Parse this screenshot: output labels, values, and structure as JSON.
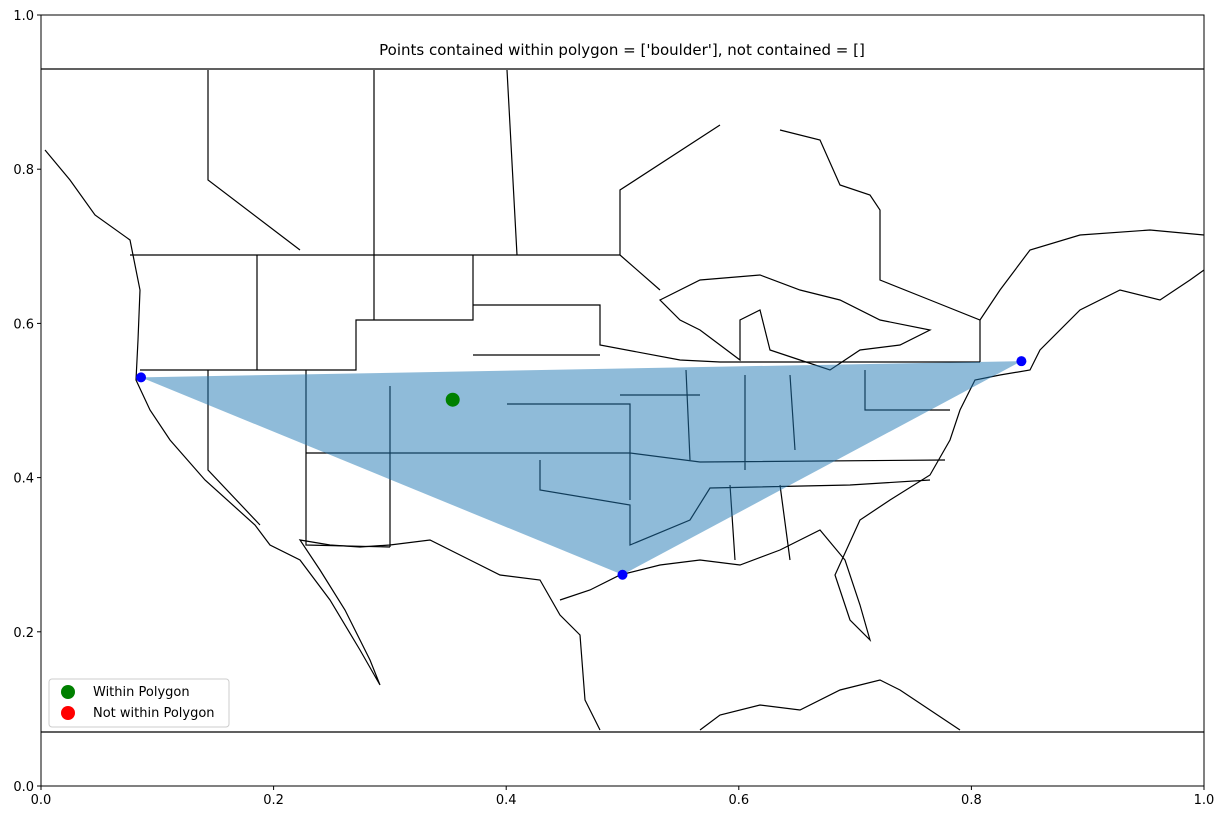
{
  "chart_data": {
    "type": "scatter",
    "title": "Points contained within polygon = ['boulder'], not contained = []",
    "xlim": [
      0,
      1
    ],
    "ylim": [
      0,
      1
    ],
    "xticks": [
      {
        "value": 0,
        "label": "0.0"
      },
      {
        "value": 0.2,
        "label": "0.2"
      },
      {
        "value": 0.4,
        "label": "0.4"
      },
      {
        "value": 0.6,
        "label": "0.6"
      },
      {
        "value": 0.8,
        "label": "0.8"
      },
      {
        "value": 1,
        "label": "1.0"
      }
    ],
    "yticks": [
      {
        "value": 0,
        "label": "0.0"
      },
      {
        "value": 0.2,
        "label": "0.2"
      },
      {
        "value": 0.4,
        "label": "0.4"
      },
      {
        "value": 0.6,
        "label": "0.6"
      },
      {
        "value": 0.8,
        "label": "0.8"
      },
      {
        "value": 1,
        "label": "1.0"
      }
    ],
    "polygon": {
      "color": "#1f77b4",
      "x": [
        0.086,
        0.843,
        0.5
      ],
      "y": [
        0.53,
        0.551,
        0.274
      ]
    },
    "series": [
      {
        "name": "Within Polygon",
        "color": "#008000",
        "x": [
          0.354
        ],
        "y": [
          0.501
        ]
      },
      {
        "name": "Not within Polygon",
        "color": "#ff0000",
        "x": [],
        "y": []
      }
    ],
    "legend": "lower left"
  }
}
